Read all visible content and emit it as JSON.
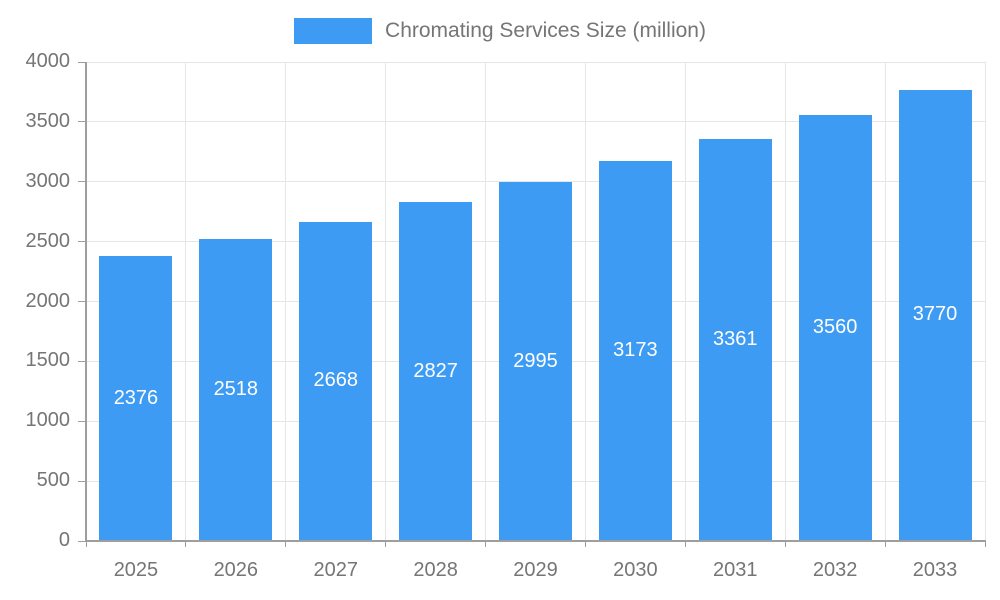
{
  "legend": {
    "label": "Chromating Services Size (million)"
  },
  "chart_data": {
    "type": "bar",
    "title": "Chromating Services Size (million)",
    "categories": [
      "2025",
      "2026",
      "2027",
      "2028",
      "2029",
      "2030",
      "2031",
      "2032",
      "2033"
    ],
    "values": [
      2376,
      2518,
      2668,
      2827,
      2995,
      3173,
      3361,
      3560,
      3770
    ],
    "series": [
      {
        "name": "Chromating Services Size (million)",
        "values": [
          2376,
          2518,
          2668,
          2827,
          2995,
          3173,
          3361,
          3560,
          3770
        ]
      }
    ],
    "xlabel": "",
    "ylabel": "",
    "ylim": [
      0,
      4000
    ],
    "yticks": [
      0,
      500,
      1000,
      1500,
      2000,
      2500,
      3000,
      3500,
      4000
    ],
    "grid": true,
    "legend_position": "top",
    "bar_color": "#3D9BF3",
    "grid_color": "#e6e6e6",
    "axis_line_color": "#9e9e9e",
    "axis_text_color": "#757575",
    "value_label_color": "#ffffff"
  }
}
